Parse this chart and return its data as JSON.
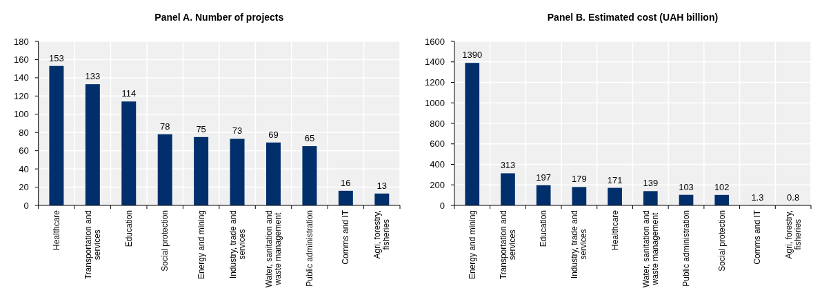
{
  "chart_data": [
    {
      "type": "bar",
      "title": "Panel A. Number of projects",
      "categories": [
        "Healthcare",
        "Transportation and services",
        "Education",
        "Social protection",
        "Energy and mining",
        "Industry, trade and services",
        "Water, sanitation and waste management",
        "Public administration",
        "Comms and IT",
        "Agri, forestry, fisheries"
      ],
      "values": [
        153,
        133,
        114,
        78,
        75,
        73,
        69,
        65,
        16,
        13
      ],
      "color": "#002f6c",
      "ylim": [
        0,
        180
      ],
      "yticks": [
        0,
        20,
        40,
        60,
        80,
        100,
        120,
        140,
        160,
        180
      ],
      "grid": true,
      "data_labels": true
    },
    {
      "type": "bar",
      "title": "Panel B. Estimated cost (UAH billion)",
      "categories": [
        "Energy and mining",
        "Transportation and services",
        "Education",
        "Industry, trade and services",
        "Healthcare",
        "Water, sanitation and waste management",
        "Public administration",
        "Social protection",
        "Comms and IT",
        "Agri, forestry, fisheries"
      ],
      "values": [
        1390,
        313,
        197,
        179,
        171,
        139,
        103,
        102,
        1.3,
        0.8
      ],
      "color": "#002f6c",
      "ylim": [
        0,
        1600
      ],
      "yticks": [
        0,
        200,
        400,
        600,
        800,
        1000,
        1200,
        1400,
        1600
      ],
      "grid": true,
      "data_labels": true
    }
  ]
}
